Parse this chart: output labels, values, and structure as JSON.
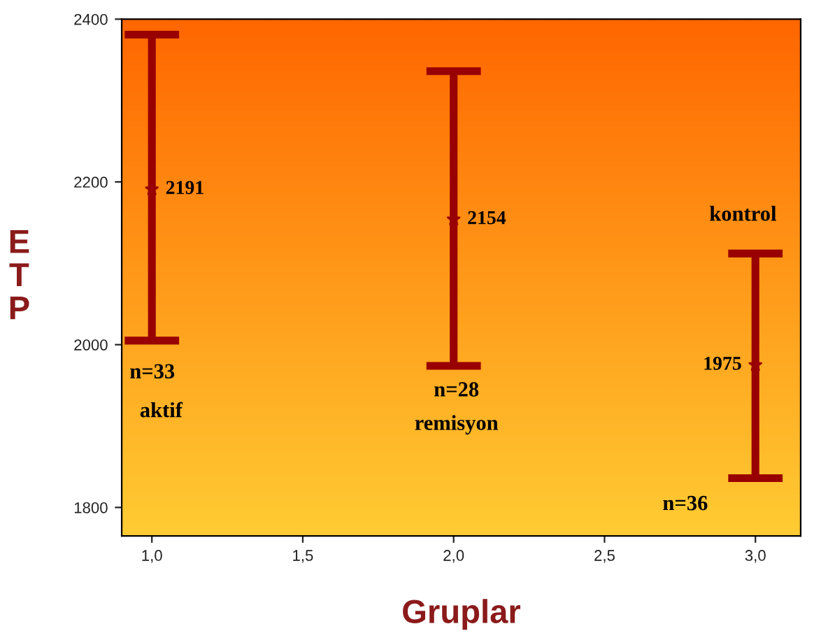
{
  "chart_data": {
    "type": "scatter",
    "xlabel": "Gruplar",
    "ylabel": "ETP",
    "x": [
      1.0,
      2.0,
      3.0
    ],
    "series": [
      {
        "color": "#990000",
        "values": [
          2191,
          2154,
          1975
        ],
        "errors": [
          [
            2005,
            2381
          ],
          [
            1974,
            2336
          ],
          [
            1836,
            2112
          ]
        ]
      }
    ],
    "data_labels": true,
    "marker": "star",
    "xlim": [
      0.9,
      3.15
    ],
    "ylim": [
      1765,
      2400
    ],
    "xticks": [
      {
        "value": 1.0,
        "label": "1,0"
      },
      {
        "value": 1.5,
        "label": "1,5"
      },
      {
        "value": 2.0,
        "label": "2,0"
      },
      {
        "value": 2.5,
        "label": "2,5"
      },
      {
        "value": 3.0,
        "label": "3,0"
      }
    ],
    "yticks": [
      1800,
      2000,
      2200,
      2400
    ],
    "grid": false,
    "annotations": [
      "n=33",
      "aktif",
      "n=28",
      "remisyon",
      "kontrol",
      "n=36"
    ]
  }
}
